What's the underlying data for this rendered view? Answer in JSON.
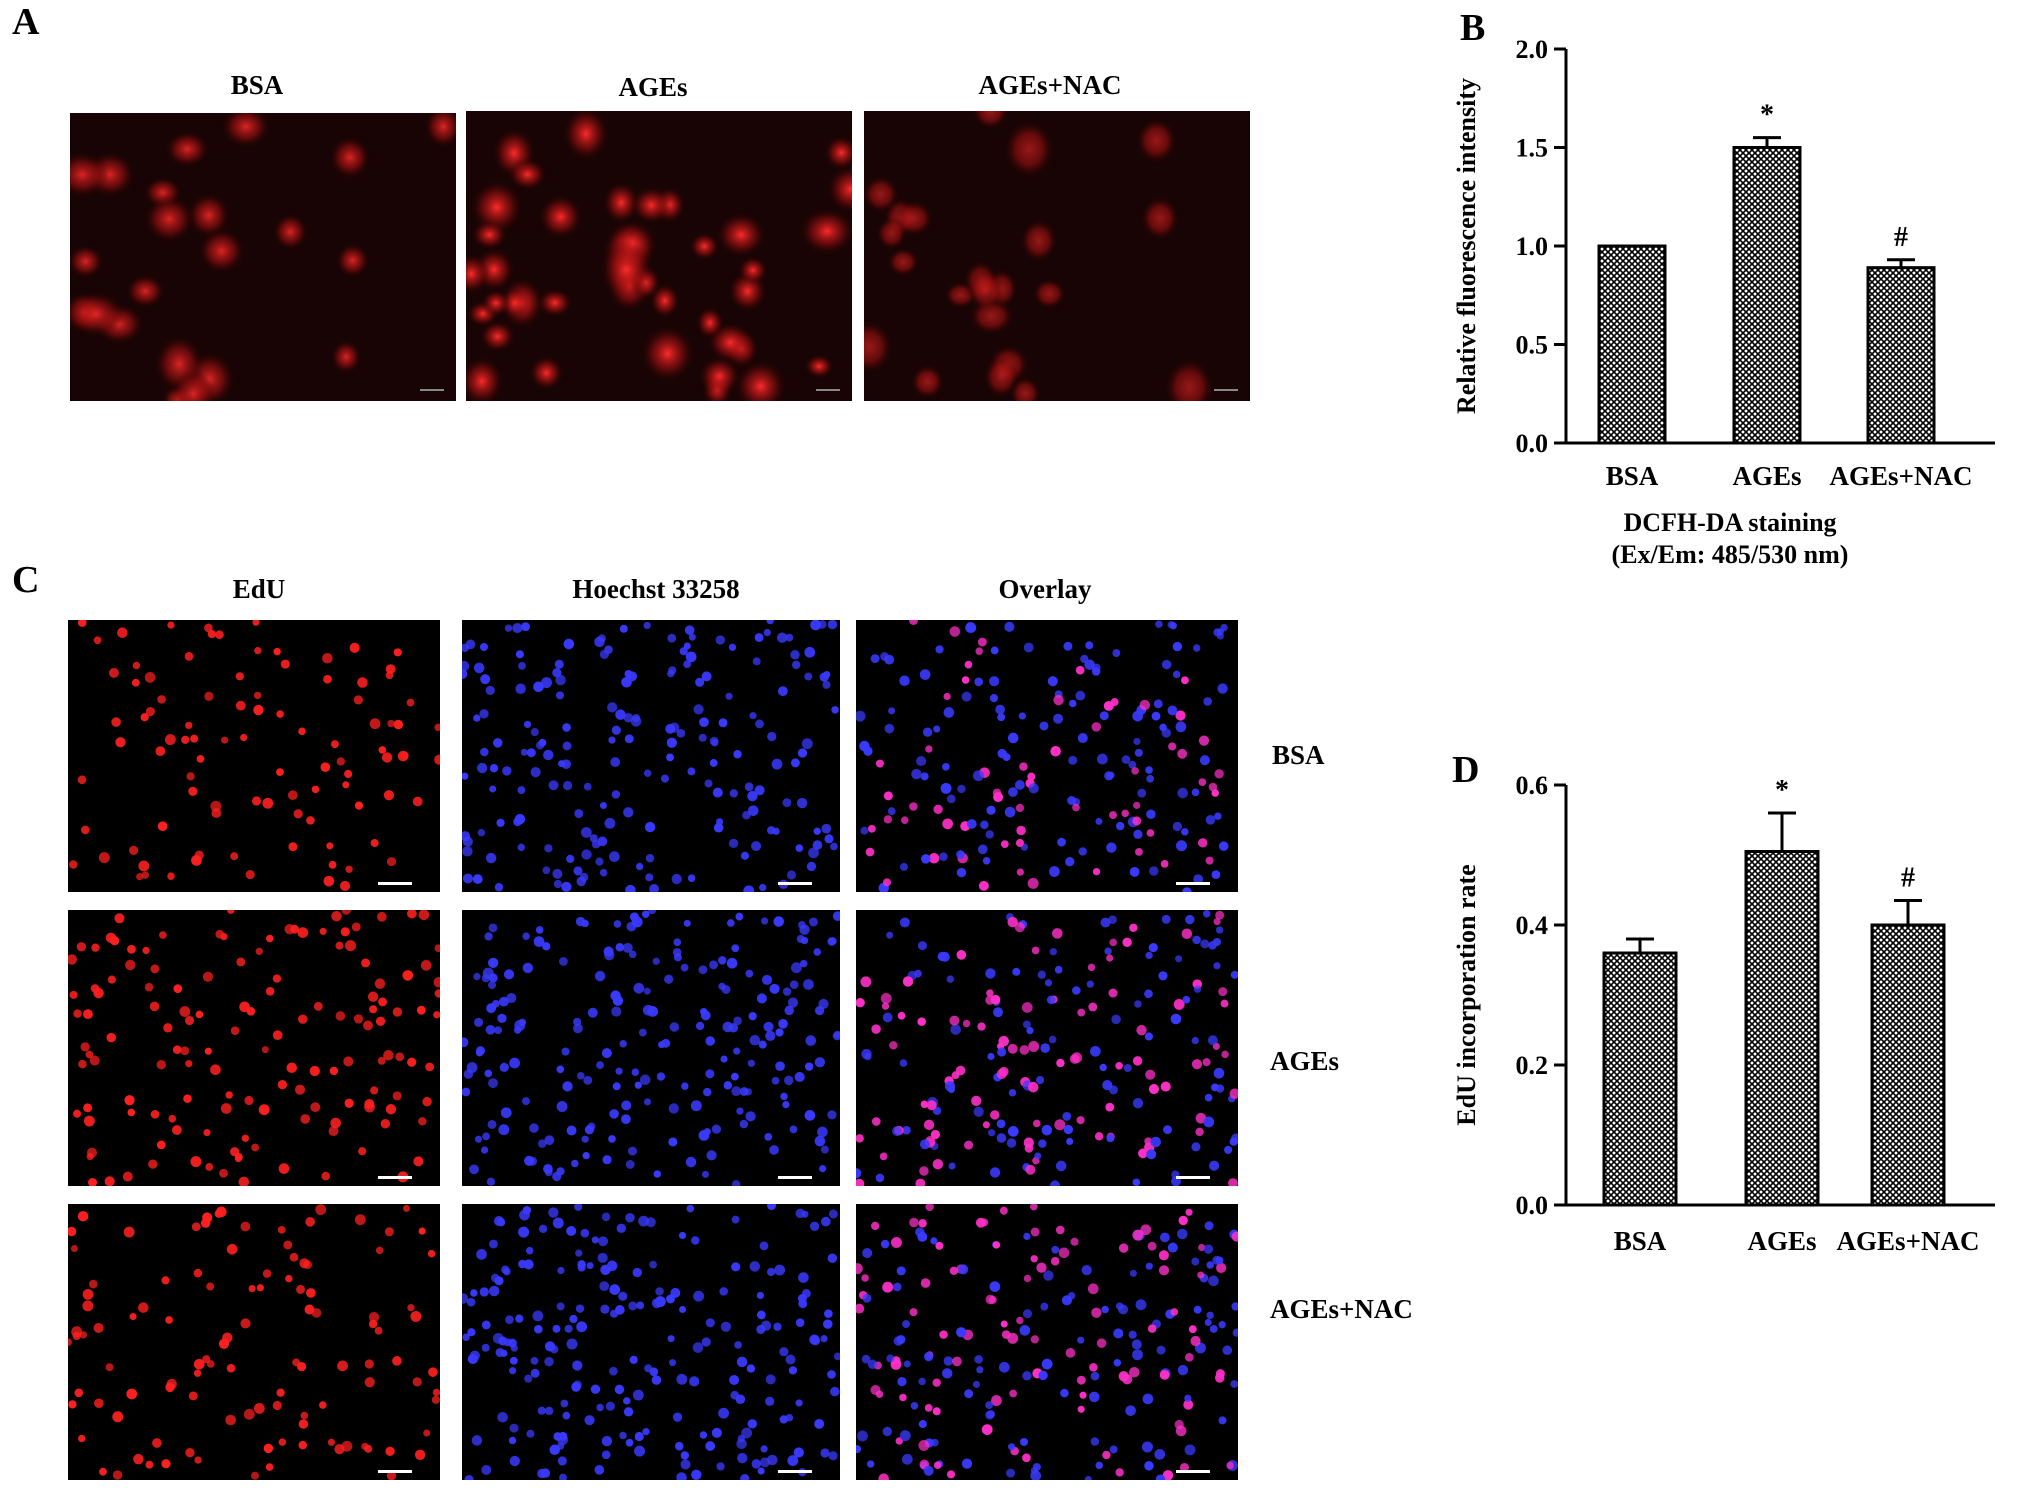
{
  "panels": {
    "A": {
      "letter": "A",
      "labels": [
        "BSA",
        "AGEs",
        "AGEs+NAC"
      ],
      "tint": "#ff2a2a"
    },
    "B": {
      "letter": "B"
    },
    "C": {
      "letter": "C",
      "columns": [
        "EdU",
        "Hoechst 33258",
        "Overlay"
      ],
      "rows": [
        "BSA",
        "AGEs",
        "AGEs+NAC"
      ],
      "colors": {
        "edu": "#ff2020",
        "hoechst": "#3a3aff",
        "overlay": "#ff30c8"
      }
    },
    "D": {
      "letter": "D"
    }
  },
  "chart_data": [
    {
      "type": "bar",
      "categories": [
        "BSA",
        "AGEs",
        "AGEs+NAC"
      ],
      "values": [
        1.0,
        1.5,
        0.89
      ],
      "errors": [
        0.0,
        0.05,
        0.04
      ],
      "annotations": [
        "",
        "*",
        "#"
      ],
      "ylabel": "Relative fluorescence intensity",
      "xlabel_lines": [
        "DCFH-DA staining",
        "(Ex/Em: 485/530 nm)"
      ],
      "ylim": [
        0,
        2.0
      ],
      "yticks": [
        "0.0",
        "0.5",
        "1.0",
        "1.5",
        "2.0"
      ],
      "grid": false,
      "bar_fill": "crosshatch"
    },
    {
      "type": "bar",
      "categories": [
        "BSA",
        "AGEs",
        "AGEs+NAC"
      ],
      "values": [
        0.36,
        0.505,
        0.4
      ],
      "errors": [
        0.02,
        0.055,
        0.035
      ],
      "annotations": [
        "",
        "*",
        "#"
      ],
      "ylabel": "EdU incorporation rate",
      "ylim": [
        0,
        0.6
      ],
      "yticks": [
        "0.0",
        "0.2",
        "0.4",
        "0.6"
      ],
      "grid": false,
      "bar_fill": "crosshatch"
    }
  ]
}
